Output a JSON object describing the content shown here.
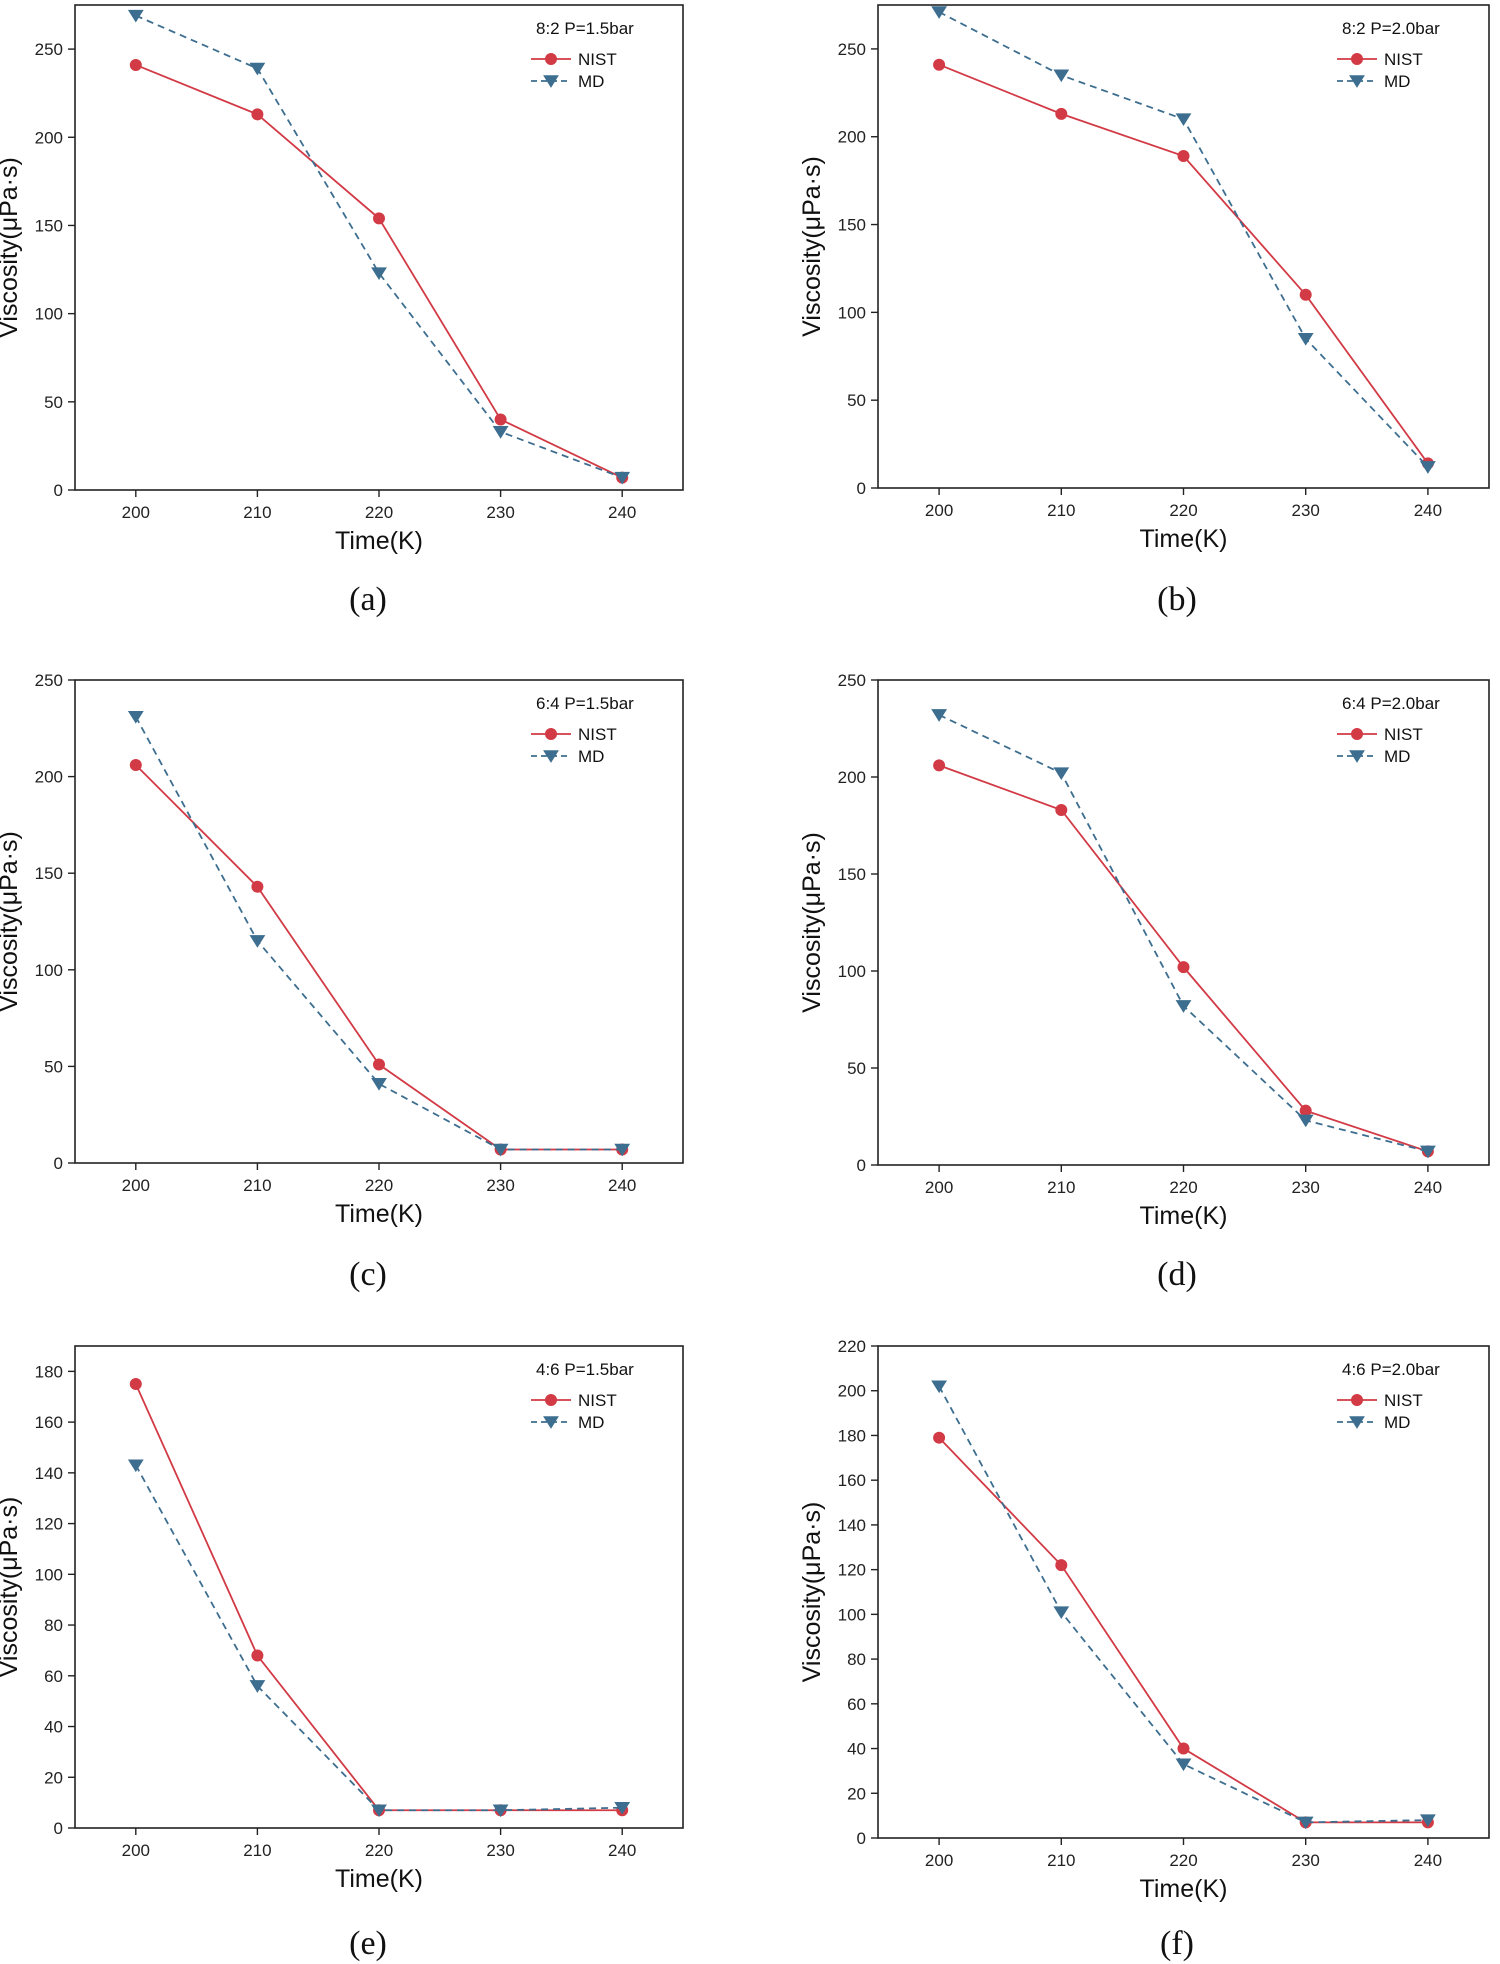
{
  "colors": {
    "nist": "#d23a45",
    "md": "#3d6e8f",
    "axis": "#222222"
  },
  "chart_data": [
    {
      "type": "line",
      "caption": "(a)",
      "annotation": "8:2  P=1.5bar",
      "xlabel": "Time(K)",
      "ylabel": "Viscosity(μPa·s)",
      "x": [
        200,
        210,
        220,
        230,
        240
      ],
      "xticks": [
        "200",
        "210",
        "220",
        "230",
        "240"
      ],
      "xlim": [
        195,
        245
      ],
      "ylim": [
        0,
        275
      ],
      "yticks": [
        "0",
        "50",
        "100",
        "150",
        "200",
        "250"
      ],
      "ytick_values": [
        0,
        50,
        100,
        150,
        200,
        250
      ],
      "legend_position": "top-right",
      "series": [
        {
          "name": "NIST",
          "marker": "circle",
          "line": "solid",
          "values": [
            241,
            213,
            154,
            40,
            7
          ]
        },
        {
          "name": "MD",
          "marker": "triangle-down",
          "line": "dashed",
          "values": [
            269,
            239,
            123,
            33,
            7
          ]
        }
      ]
    },
    {
      "type": "line",
      "caption": "(b)",
      "annotation": "8:2  P=2.0bar",
      "xlabel": "Time(K)",
      "ylabel": "Viscosity(μPa·s)",
      "x": [
        200,
        210,
        220,
        230,
        240
      ],
      "xticks": [
        "200",
        "210",
        "220",
        "230",
        "240"
      ],
      "xlim": [
        195,
        245
      ],
      "ylim": [
        0,
        275
      ],
      "yticks": [
        "0",
        "50",
        "100",
        "150",
        "200",
        "250"
      ],
      "ytick_values": [
        0,
        50,
        100,
        150,
        200,
        250
      ],
      "legend_position": "top-right",
      "series": [
        {
          "name": "NIST",
          "marker": "circle",
          "line": "solid",
          "values": [
            241,
            213,
            189,
            110,
            14
          ]
        },
        {
          "name": "MD",
          "marker": "triangle-down",
          "line": "dashed",
          "values": [
            271,
            235,
            210,
            85,
            12
          ]
        }
      ]
    },
    {
      "type": "line",
      "caption": "(c)",
      "annotation": "6:4  P=1.5bar",
      "xlabel": "Time(K)",
      "ylabel": "Viscosity(μPa·s)",
      "x": [
        200,
        210,
        220,
        230,
        240
      ],
      "xticks": [
        "200",
        "210",
        "220",
        "230",
        "240"
      ],
      "xlim": [
        195,
        245
      ],
      "ylim": [
        0,
        250
      ],
      "yticks": [
        "0",
        "50",
        "100",
        "150",
        "200",
        "250"
      ],
      "ytick_values": [
        0,
        50,
        100,
        150,
        200,
        250
      ],
      "legend_position": "top-right",
      "series": [
        {
          "name": "NIST",
          "marker": "circle",
          "line": "solid",
          "values": [
            206,
            143,
            51,
            7,
            7
          ]
        },
        {
          "name": "MD",
          "marker": "triangle-down",
          "line": "dashed",
          "values": [
            231,
            115,
            41,
            7,
            7
          ]
        }
      ]
    },
    {
      "type": "line",
      "caption": "(d)",
      "annotation": "6:4  P=2.0bar",
      "xlabel": "Time(K)",
      "ylabel": "Viscosity(μPa·s)",
      "x": [
        200,
        210,
        220,
        230,
        240
      ],
      "xticks": [
        "200",
        "210",
        "220",
        "230",
        "240"
      ],
      "xlim": [
        195,
        245
      ],
      "ylim": [
        0,
        250
      ],
      "yticks": [
        "0",
        "50",
        "100",
        "150",
        "200",
        "250"
      ],
      "ytick_values": [
        0,
        50,
        100,
        150,
        200,
        250
      ],
      "legend_position": "top-right",
      "series": [
        {
          "name": "NIST",
          "marker": "circle",
          "line": "solid",
          "values": [
            206,
            183,
            102,
            28,
            7
          ]
        },
        {
          "name": "MD",
          "marker": "triangle-down",
          "line": "dashed",
          "values": [
            232,
            202,
            82,
            23,
            7
          ]
        }
      ]
    },
    {
      "type": "line",
      "caption": "(e)",
      "annotation": "4:6  P=1.5bar",
      "xlabel": "Time(K)",
      "ylabel": "Viscosity(μPa·s)",
      "x": [
        200,
        210,
        220,
        230,
        240
      ],
      "xticks": [
        "200",
        "210",
        "220",
        "230",
        "240"
      ],
      "xlim": [
        195,
        245
      ],
      "ylim": [
        0,
        190
      ],
      "yticks": [
        "0",
        "20",
        "40",
        "60",
        "80",
        "100",
        "120",
        "140",
        "160",
        "180"
      ],
      "ytick_values": [
        0,
        20,
        40,
        60,
        80,
        100,
        120,
        140,
        160,
        180
      ],
      "legend_position": "top-right",
      "series": [
        {
          "name": "NIST",
          "marker": "circle",
          "line": "solid",
          "values": [
            175,
            68,
            7,
            7,
            7
          ]
        },
        {
          "name": "MD",
          "marker": "triangle-down",
          "line": "dashed",
          "values": [
            143,
            56,
            7,
            7,
            8
          ]
        }
      ]
    },
    {
      "type": "line",
      "caption": "(f)",
      "annotation": "4:6  P=2.0bar",
      "xlabel": "Time(K)",
      "ylabel": "Viscosity(μPa·s)",
      "x": [
        200,
        210,
        220,
        230,
        240
      ],
      "xticks": [
        "200",
        "210",
        "220",
        "230",
        "240"
      ],
      "xlim": [
        195,
        245
      ],
      "ylim": [
        0,
        220
      ],
      "yticks": [
        "0",
        "20",
        "40",
        "60",
        "80",
        "100",
        "120",
        "140",
        "160",
        "180",
        "200",
        "220"
      ],
      "ytick_values": [
        0,
        20,
        40,
        60,
        80,
        100,
        120,
        140,
        160,
        180,
        200,
        220
      ],
      "legend_position": "top-right",
      "series": [
        {
          "name": "NIST",
          "marker": "circle",
          "line": "solid",
          "values": [
            179,
            122,
            40,
            7,
            7
          ]
        },
        {
          "name": "MD",
          "marker": "triangle-down",
          "line": "dashed",
          "values": [
            202,
            101,
            33,
            7,
            8
          ]
        }
      ]
    }
  ]
}
